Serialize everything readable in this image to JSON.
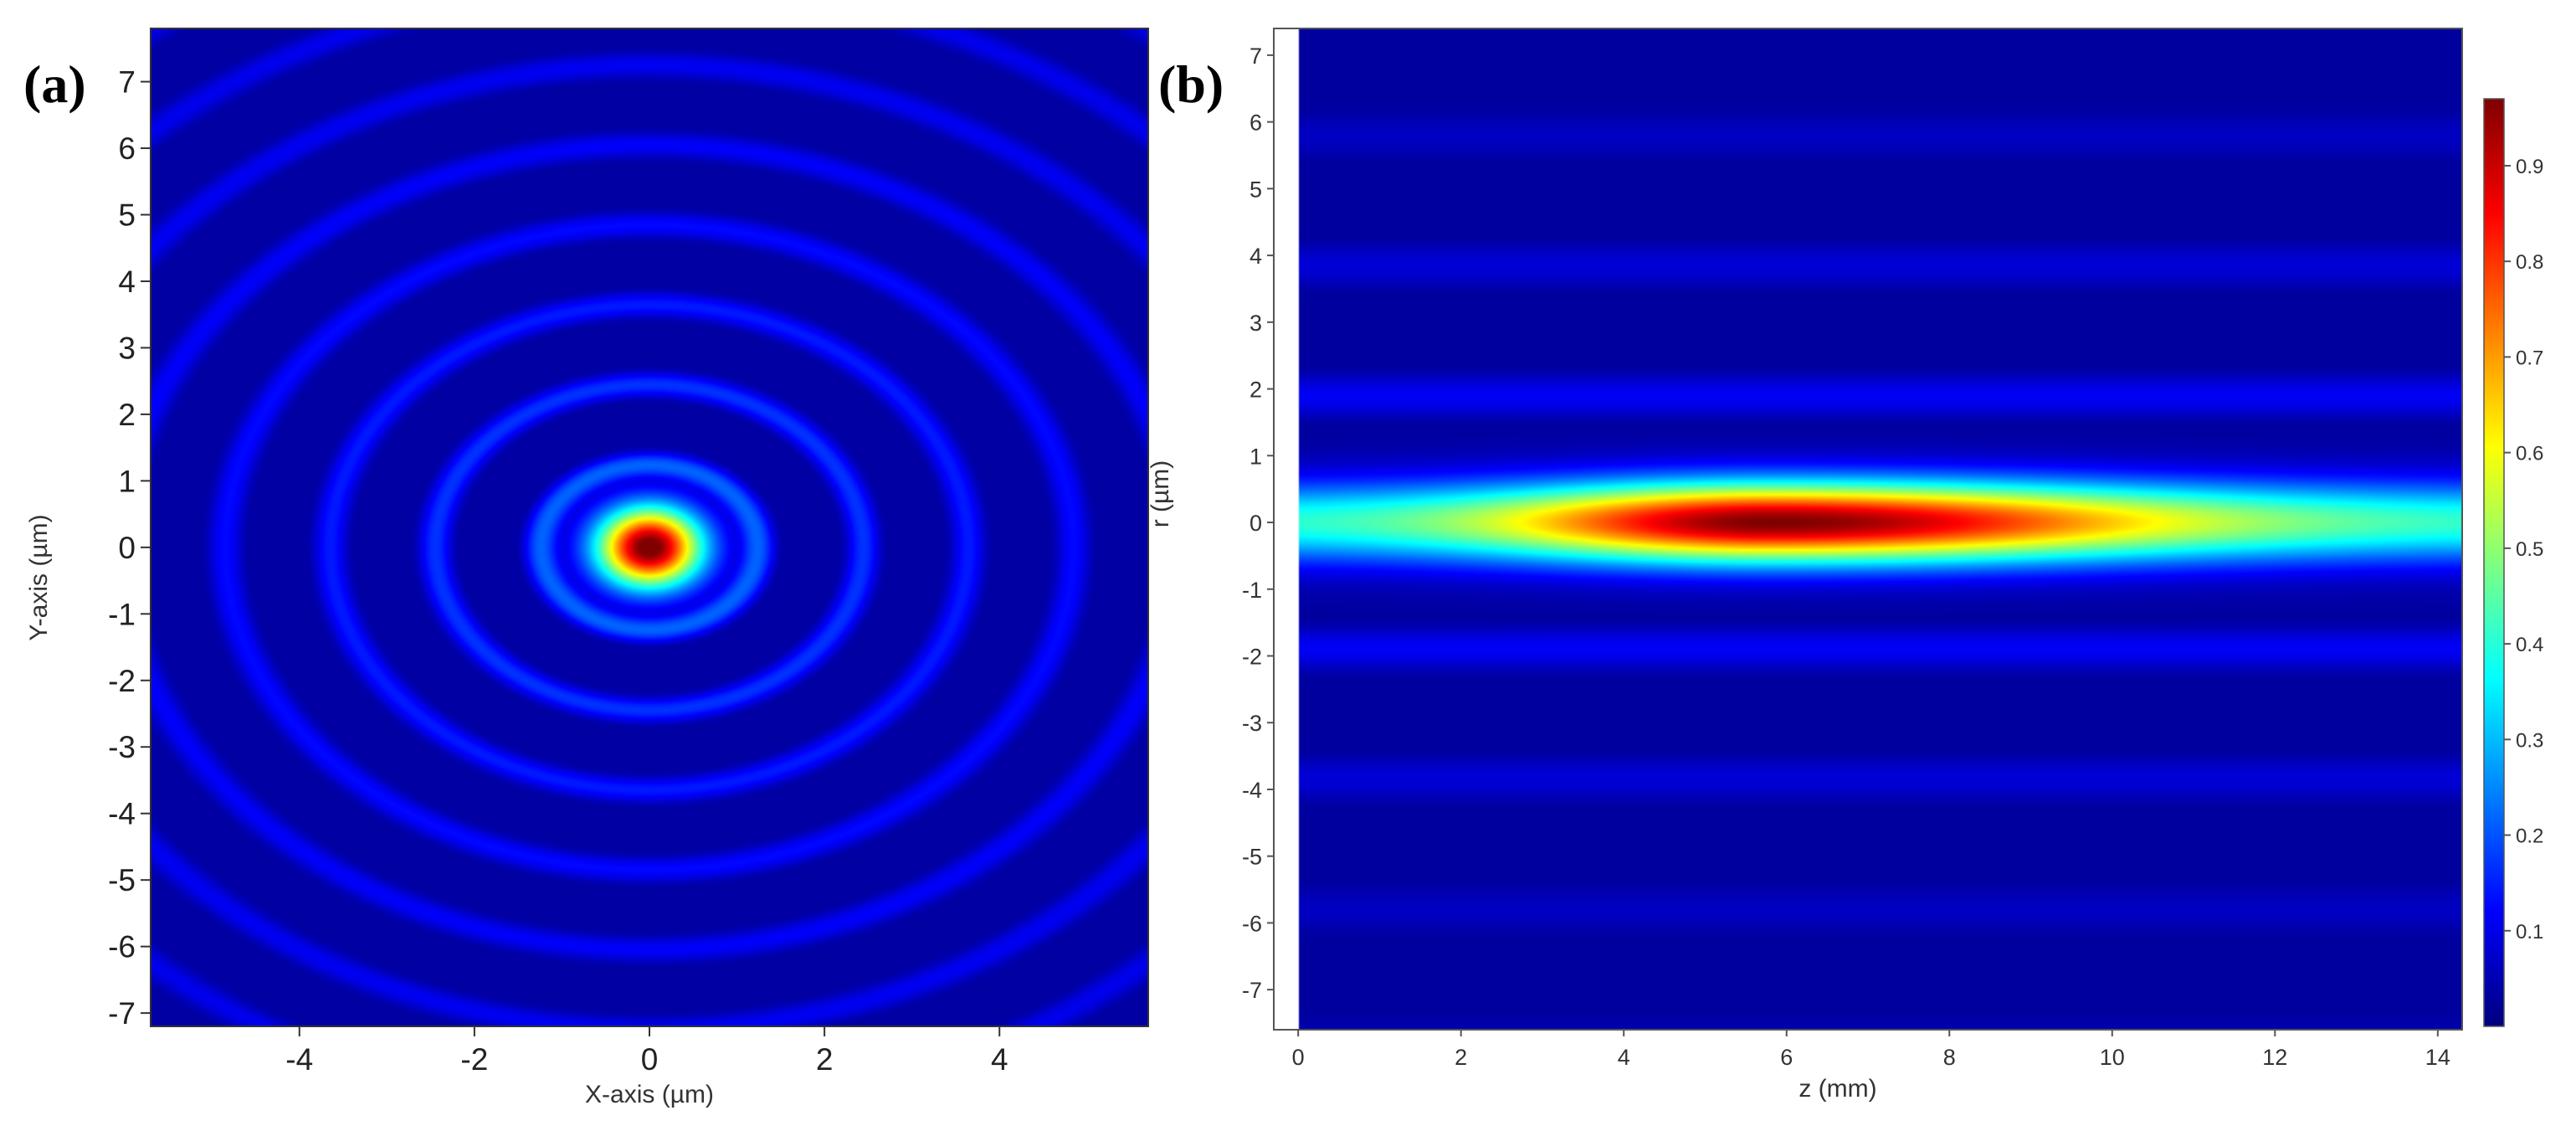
{
  "chart_data": [
    {
      "panel_label": "(a)",
      "type": "heatmap",
      "title": "",
      "xlabel": "X-axis (µm)",
      "ylabel": "Y-axis (µm)",
      "xlim": [
        -5.7,
        5.7
      ],
      "ylim": [
        -7.2,
        7.8
      ],
      "xticks": [
        "-4",
        "-2",
        "0",
        "2",
        "4"
      ],
      "yticks": [
        "-7",
        "-6",
        "-5",
        "-4",
        "-3",
        "-2",
        "-1",
        "0",
        "1",
        "2",
        "3",
        "4",
        "5",
        "6",
        "7"
      ],
      "colormap": "jet",
      "pattern": "concentric rings (Bessel-like) centered at origin",
      "center": [
        0,
        0
      ],
      "peak_value": 1.0,
      "ring_radii_um": [
        1.25,
        2.45,
        3.65,
        4.85,
        6.05
      ],
      "dark_ring_radii_um": [
        0.85,
        1.85,
        3.05,
        4.25,
        5.45,
        6.65
      ],
      "ring_peak_values": [
        0.22,
        0.16,
        0.13,
        0.11,
        0.1
      ]
    },
    {
      "panel_label": "(b)",
      "type": "heatmap",
      "title": "",
      "xlabel": "z (mm)",
      "ylabel": "r (µm)",
      "xlim": [
        -0.3,
        14.3
      ],
      "ylim": [
        -7.6,
        7.4
      ],
      "xticks": [
        "0",
        "2",
        "4",
        "6",
        "8",
        "10",
        "12",
        "14"
      ],
      "yticks": [
        "-7",
        "-6",
        "-5",
        "-4",
        "-3",
        "-2",
        "-1",
        "0",
        "1",
        "2",
        "3",
        "4",
        "5",
        "6",
        "7"
      ],
      "colormap": "jet",
      "pattern": "elongated focal line along z at r = 0",
      "peak_z_mm": 5.8,
      "peak_value": 0.97,
      "side_lobe_r_um": [
        1.9,
        3.8,
        5.8
      ],
      "colorbar": {
        "min": 0,
        "max": 0.97,
        "ticks": [
          "0.1",
          "0.2",
          "0.3",
          "0.4",
          "0.5",
          "0.6",
          "0.7",
          "0.8",
          "0.9"
        ]
      }
    }
  ],
  "colors": {
    "background": "#ffffff",
    "jet_low": "#00007f",
    "jet_high": "#7f0000"
  }
}
